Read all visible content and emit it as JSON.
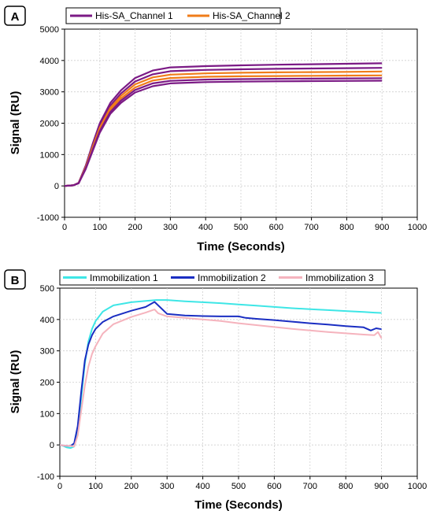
{
  "chart_data": [
    {
      "panel": "A",
      "type": "line",
      "xlabel": "Time (Seconds)",
      "ylabel": "Signal (RU)",
      "xlim": [
        0,
        1000
      ],
      "ylim": [
        -1000,
        5000
      ],
      "xticks": [
        0,
        100,
        200,
        300,
        400,
        500,
        600,
        700,
        800,
        900,
        1000
      ],
      "yticks": [
        -1000,
        0,
        1000,
        2000,
        3000,
        4000,
        5000
      ],
      "legend_position": "top",
      "legend": [
        {
          "label": "His-SA_Channel 1",
          "color": "#7b1a85"
        },
        {
          "label": "His-SA_Channel 2",
          "color": "#f07c19"
        }
      ],
      "series": [
        {
          "name": "His-SA_Channel 1",
          "color": "#7b1a85",
          "x": [
            0,
            25,
            40,
            60,
            80,
            100,
            130,
            160,
            200,
            250,
            300,
            400,
            500,
            600,
            700,
            800,
            900
          ],
          "y": [
            0,
            20,
            100,
            650,
            1350,
            2000,
            2650,
            3050,
            3440,
            3680,
            3780,
            3820,
            3845,
            3865,
            3880,
            3895,
            3910
          ]
        },
        {
          "name": "His-SA_Channel 1",
          "color": "#7b1a85",
          "x": [
            0,
            25,
            40,
            60,
            80,
            100,
            130,
            160,
            200,
            250,
            300,
            400,
            500,
            600,
            700,
            800,
            900
          ],
          "y": [
            0,
            20,
            95,
            620,
            1290,
            1920,
            2560,
            2950,
            3330,
            3560,
            3660,
            3700,
            3720,
            3735,
            3745,
            3755,
            3765
          ]
        },
        {
          "name": "His-SA_Channel 2",
          "color": "#f07c19",
          "x": [
            0,
            25,
            40,
            60,
            80,
            100,
            130,
            160,
            200,
            250,
            300,
            400,
            500,
            600,
            700,
            800,
            900
          ],
          "y": [
            0,
            20,
            92,
            600,
            1250,
            1860,
            2490,
            2870,
            3240,
            3460,
            3550,
            3590,
            3610,
            3622,
            3630,
            3638,
            3650
          ]
        },
        {
          "name": "His-SA_Channel 2",
          "color": "#f07c19",
          "x": [
            0,
            25,
            40,
            60,
            80,
            100,
            130,
            160,
            200,
            250,
            300,
            400,
            500,
            600,
            700,
            800,
            900
          ],
          "y": [
            0,
            20,
            90,
            580,
            1200,
            1800,
            2420,
            2790,
            3140,
            3360,
            3440,
            3480,
            3495,
            3505,
            3512,
            3518,
            3525
          ]
        },
        {
          "name": "His-SA_Channel 1",
          "color": "#7b1a85",
          "x": [
            0,
            25,
            40,
            60,
            80,
            100,
            130,
            160,
            200,
            250,
            300,
            400,
            500,
            600,
            700,
            800,
            900
          ],
          "y": [
            0,
            20,
            88,
            560,
            1160,
            1750,
            2360,
            2720,
            3060,
            3270,
            3350,
            3390,
            3405,
            3415,
            3422,
            3428,
            3435
          ]
        },
        {
          "name": "His-SA_Channel 1",
          "color": "#7b1a85",
          "x": [
            0,
            25,
            40,
            60,
            80,
            100,
            130,
            160,
            200,
            250,
            300,
            400,
            500,
            600,
            700,
            800,
            900
          ],
          "y": [
            0,
            20,
            85,
            540,
            1120,
            1700,
            2300,
            2650,
            2980,
            3180,
            3270,
            3310,
            3325,
            3335,
            3342,
            3348,
            3355
          ]
        }
      ]
    },
    {
      "panel": "B",
      "type": "line",
      "xlabel": "Time (Seconds)",
      "ylabel": "Signal (RU)",
      "xlim": [
        0,
        1000
      ],
      "ylim": [
        -100,
        500
      ],
      "xticks": [
        0,
        100,
        200,
        300,
        400,
        500,
        600,
        700,
        800,
        900,
        1000
      ],
      "yticks": [
        -100,
        0,
        100,
        200,
        300,
        400,
        500
      ],
      "legend_position": "top",
      "legend": [
        {
          "label": "Immobilization 1",
          "color": "#3ee6e6"
        },
        {
          "label": "Immobilization 2",
          "color": "#1a2ec2"
        },
        {
          "label": "Immobilization 3",
          "color": "#f5b3bd"
        }
      ],
      "series": [
        {
          "name": "Immobilization 1",
          "color": "#3ee6e6",
          "x": [
            0,
            10,
            20,
            30,
            40,
            50,
            60,
            70,
            80,
            90,
            100,
            120,
            150,
            200,
            250,
            270,
            300,
            350,
            400,
            450,
            500,
            550,
            600,
            650,
            700,
            750,
            800,
            850,
            880,
            900
          ],
          "y": [
            0,
            -3,
            -8,
            -10,
            -5,
            40,
            150,
            260,
            330,
            370,
            395,
            425,
            445,
            455,
            460,
            462,
            462,
            458,
            455,
            452,
            448,
            444,
            440,
            436,
            433,
            430,
            427,
            424,
            422,
            421
          ]
        },
        {
          "name": "Immobilization 2",
          "color": "#1a2ec2",
          "x": [
            0,
            10,
            20,
            30,
            40,
            50,
            60,
            70,
            80,
            90,
            100,
            120,
            150,
            200,
            240,
            265,
            275,
            300,
            350,
            400,
            450,
            500,
            520,
            550,
            600,
            650,
            700,
            750,
            800,
            850,
            870,
            885,
            900
          ],
          "y": [
            0,
            -2,
            -3,
            -3,
            5,
            60,
            170,
            270,
            320,
            350,
            370,
            392,
            410,
            428,
            440,
            456,
            445,
            418,
            413,
            411,
            410,
            410,
            405,
            402,
            398,
            393,
            388,
            384,
            379,
            375,
            365,
            372,
            369
          ]
        },
        {
          "name": "Immobilization 3",
          "color": "#f5b3bd",
          "x": [
            0,
            10,
            20,
            30,
            40,
            50,
            60,
            70,
            80,
            90,
            100,
            120,
            150,
            200,
            240,
            265,
            275,
            300,
            350,
            400,
            450,
            500,
            550,
            600,
            650,
            700,
            750,
            800,
            850,
            880,
            890,
            900
          ],
          "y": [
            0,
            -2,
            -3,
            -3,
            -5,
            30,
            110,
            190,
            250,
            290,
            315,
            355,
            385,
            408,
            422,
            432,
            420,
            410,
            405,
            400,
            395,
            388,
            382,
            376,
            370,
            365,
            360,
            356,
            352,
            350,
            360,
            340
          ]
        }
      ]
    }
  ],
  "panels": {
    "a": {
      "letter": "A",
      "legend": {
        "item0": "His-SA_Channel 1",
        "item1": "His-SA_Channel 2"
      }
    },
    "b": {
      "letter": "B",
      "legend": {
        "item0": "Immobilization 1",
        "item1": "Immobilization 2",
        "item2": "Immobilization 3"
      }
    }
  },
  "axes_text": {
    "xlabel": "Time (Seconds)",
    "ylabel": "Signal (RU)"
  }
}
